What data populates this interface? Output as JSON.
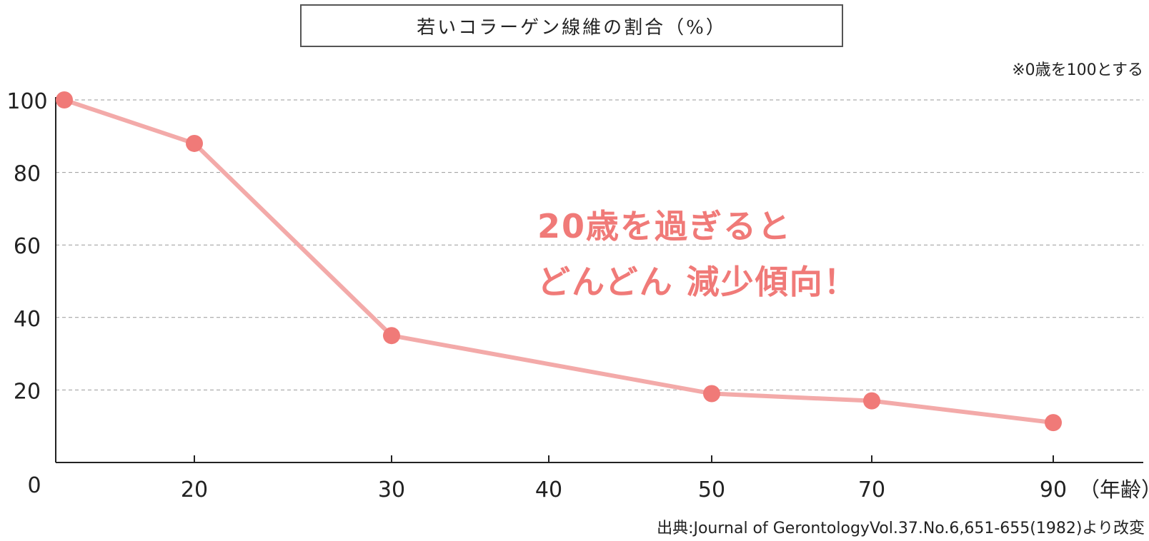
{
  "title": "若いコラーゲン線維の割合（%）",
  "note": "※0歳を100とする",
  "annotation_lines": [
    "20歳を過ぎると",
    "どんどん 減少傾向！"
  ],
  "source": "出典:Journal of GerontologyVol.37.No.6,651-655(1982)より改変",
  "colors": {
    "line": "#f3aaa9",
    "marker": "#f07a78",
    "annotation": "#f07a78",
    "grid": "#999999",
    "axis": "#222222"
  },
  "chart_data": {
    "type": "line",
    "title": "若いコラーゲン線維の割合（%）",
    "xlabel": "（年齢）",
    "ylabel": "",
    "x_ticks": [
      "0",
      "20",
      "30",
      "40",
      "50",
      "70",
      "90"
    ],
    "y_ticks": [
      "20",
      "40",
      "60",
      "80",
      "100"
    ],
    "ylim": [
      0,
      100
    ],
    "grid": "horizontal dashed",
    "series": [
      {
        "points": [
          {
            "x": "0",
            "y": 100
          },
          {
            "x": "20",
            "y": 88
          },
          {
            "x": "30",
            "y": 35
          },
          {
            "x": "50",
            "y": 19
          },
          {
            "x": "70",
            "y": 17
          },
          {
            "x": "90",
            "y": 11
          }
        ]
      }
    ]
  }
}
